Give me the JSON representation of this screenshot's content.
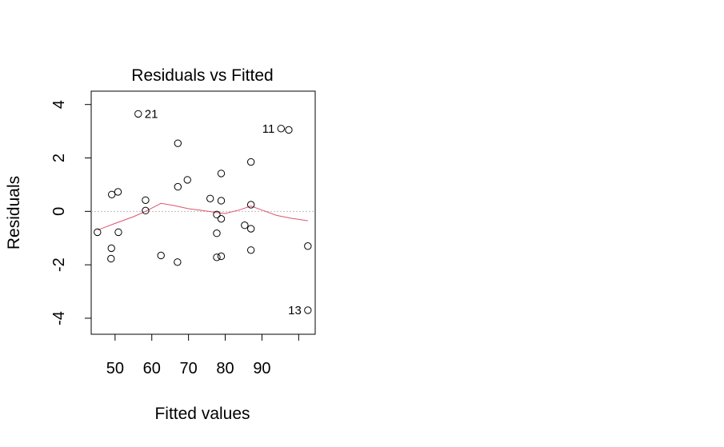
{
  "chart_data": {
    "type": "scatter",
    "title": "Residuals vs Fitted",
    "xlabel": "Fitted values",
    "ylabel": "Residuals",
    "xlim": [
      43.5,
      104.5
    ],
    "ylim": [
      -4.6,
      4.5
    ],
    "x_ticks": [
      50,
      60,
      70,
      80,
      90,
      100
    ],
    "x_tick_labels": [
      "50",
      "60",
      "70",
      "80",
      "90",
      ""
    ],
    "y_ticks": [
      -4,
      -2,
      0,
      2,
      4
    ],
    "y_tick_labels": [
      "-4",
      "-2",
      "0",
      "2",
      "4"
    ],
    "reference_line_y": 0,
    "grid": false,
    "points": [
      {
        "x": 45.2,
        "y": -0.78
      },
      {
        "x": 49.1,
        "y": 0.63
      },
      {
        "x": 49.0,
        "y": -1.38
      },
      {
        "x": 48.9,
        "y": -1.77
      },
      {
        "x": 50.8,
        "y": 0.73
      },
      {
        "x": 50.9,
        "y": -0.78
      },
      {
        "x": 56.3,
        "y": 3.65,
        "label": "21"
      },
      {
        "x": 58.3,
        "y": 0.42
      },
      {
        "x": 58.3,
        "y": 0.03
      },
      {
        "x": 62.5,
        "y": -1.65
      },
      {
        "x": 67.1,
        "y": 2.55
      },
      {
        "x": 67.1,
        "y": 0.92
      },
      {
        "x": 67.0,
        "y": -1.9
      },
      {
        "x": 69.7,
        "y": 1.18
      },
      {
        "x": 75.9,
        "y": 0.48
      },
      {
        "x": 77.7,
        "y": -0.12
      },
      {
        "x": 77.7,
        "y": -0.82
      },
      {
        "x": 77.7,
        "y": -1.72
      },
      {
        "x": 78.9,
        "y": 1.42
      },
      {
        "x": 78.9,
        "y": 0.4
      },
      {
        "x": 78.9,
        "y": -0.28
      },
      {
        "x": 78.9,
        "y": -1.68
      },
      {
        "x": 85.3,
        "y": -0.52
      },
      {
        "x": 87.0,
        "y": 1.85
      },
      {
        "x": 87.0,
        "y": 0.25
      },
      {
        "x": 87.0,
        "y": -0.65
      },
      {
        "x": 87.0,
        "y": -1.45
      },
      {
        "x": 95.2,
        "y": 3.1,
        "label": "11"
      },
      {
        "x": 97.3,
        "y": 3.05
      },
      {
        "x": 102.5,
        "y": -1.3
      },
      {
        "x": 102.5,
        "y": -3.7,
        "label": "13"
      }
    ],
    "smoother": {
      "x": [
        45.2,
        50,
        55,
        58.3,
        62.5,
        66,
        70,
        74,
        78,
        80,
        84,
        87,
        90,
        94,
        98,
        102.5
      ],
      "y": [
        -0.7,
        -0.45,
        -0.2,
        0.0,
        0.3,
        0.22,
        0.1,
        0.03,
        -0.05,
        -0.08,
        0.06,
        0.2,
        0.05,
        -0.15,
        -0.26,
        -0.35
      ]
    },
    "colors": {
      "points": "#000000",
      "smoother": "#DF536B",
      "reference_line": "#BEBEBE",
      "axes": "#000000"
    }
  }
}
